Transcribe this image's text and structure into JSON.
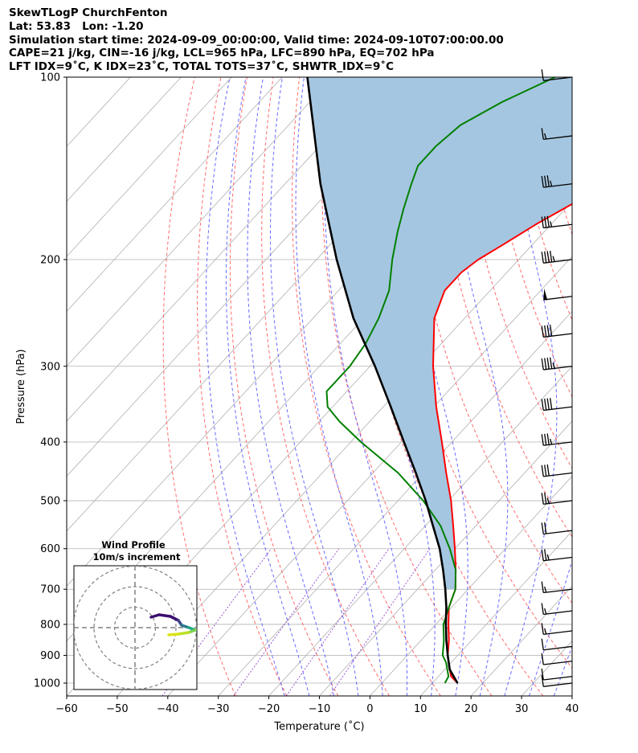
{
  "header": {
    "title": "SkewTLogP ChurchFenton",
    "location": "Lat: 53.83   Lon: -1.20",
    "times": "Simulation start time: 2024-09-09_00:00:00, Valid time: 2024-09-10T07:00:00.00",
    "params": "CAPE=21 j/kg, CIN=-16 j/kg, LCL=965 hPa, LFC=890 hPa, EQ=702 hPa",
    "indices": "LFT IDX=9˚C, K IDX=23˚C, TOTAL TOTS=37˚C, SHWTR_IDX=9˚C"
  },
  "chart_data": {
    "type": "line",
    "chart_kind": "skew-T log-P diagram",
    "xlabel": "Temperature (˚C)",
    "ylabel": "Pressure (hPa)",
    "xlim": [
      -60,
      40
    ],
    "ylim": [
      1050,
      100
    ],
    "y_scale": "log",
    "grid": true,
    "x_ticks": [
      -60,
      -50,
      -40,
      -30,
      -20,
      -10,
      0,
      10,
      20,
      30,
      40
    ],
    "y_ticks": [
      100,
      200,
      300,
      400,
      500,
      600,
      700,
      800,
      900,
      1000
    ],
    "colors": {
      "temperature": "#ff0000",
      "dewpoint": "#008000",
      "parcel": "#000000",
      "cape_fill": "#a5c6e0",
      "dry_adiabats": "#ff6b6b",
      "moist_adiabats": "#6a6aff",
      "mixing_ratio": "#9b59d0",
      "isotherms": "#b0b0b0"
    },
    "series": [
      {
        "key": "temperature",
        "pressure": [
          1000,
          975,
          950,
          925,
          900,
          850,
          800,
          750,
          700,
          650,
          600,
          550,
          500,
          450,
          400,
          350,
          300,
          250,
          225,
          210,
          200,
          190,
          175,
          160,
          150,
          140,
          130,
          120,
          110,
          100
        ],
        "values": [
          15,
          12.5,
          11,
          9.5,
          8,
          5.5,
          2.5,
          -0.5,
          -2.5,
          -6,
          -10,
          -14.5,
          -19.5,
          -25.5,
          -32,
          -39.5,
          -47.5,
          -56,
          -59,
          -59,
          -58,
          -56,
          -53,
          -49,
          -45,
          -41,
          -36,
          -30,
          -26,
          -21
        ]
      },
      {
        "key": "dewpoint",
        "pressure": [
          1000,
          975,
          950,
          925,
          900,
          850,
          800,
          750,
          700,
          650,
          600,
          550,
          500,
          450,
          400,
          370,
          350,
          330,
          300,
          275,
          250,
          225,
          200,
          180,
          165,
          150,
          140,
          130,
          120,
          110,
          100
        ],
        "values": [
          12.5,
          12,
          10.5,
          9,
          7,
          4.5,
          1.5,
          -0.5,
          -2.5,
          -6,
          -11,
          -17,
          -25,
          -35,
          -48,
          -56,
          -61,
          -64,
          -64,
          -65,
          -67,
          -70,
          -75,
          -79,
          -82,
          -85,
          -87,
          -87,
          -86,
          -82,
          -76
        ]
      },
      {
        "key": "parcel",
        "pressure": [
          1000,
          950,
          900,
          850,
          800,
          750,
          700,
          650,
          600,
          550,
          500,
          450,
          400,
          350,
          300,
          250,
          200,
          150,
          100
        ],
        "values": [
          15,
          11,
          8,
          5,
          2,
          -1,
          -4.5,
          -8.5,
          -13,
          -18.5,
          -24.5,
          -31.5,
          -39.5,
          -48.5,
          -59,
          -72,
          -86,
          -103,
          -125
        ]
      }
    ],
    "wind_barbs": {
      "pressure": [
        100,
        125,
        150,
        175,
        200,
        230,
        265,
        300,
        350,
        400,
        450,
        500,
        560,
        620,
        700,
        760,
        820,
        870,
        920,
        975,
        1000
      ],
      "knots": [
        10,
        15,
        35,
        35,
        45,
        50,
        40,
        45,
        40,
        35,
        30,
        25,
        20,
        25,
        15,
        15,
        15,
        10,
        10,
        10,
        10
      ]
    },
    "inset": {
      "title": "Wind Profile",
      "subtitle": "10m/s increment",
      "rings": [
        10,
        20,
        30
      ]
    }
  }
}
